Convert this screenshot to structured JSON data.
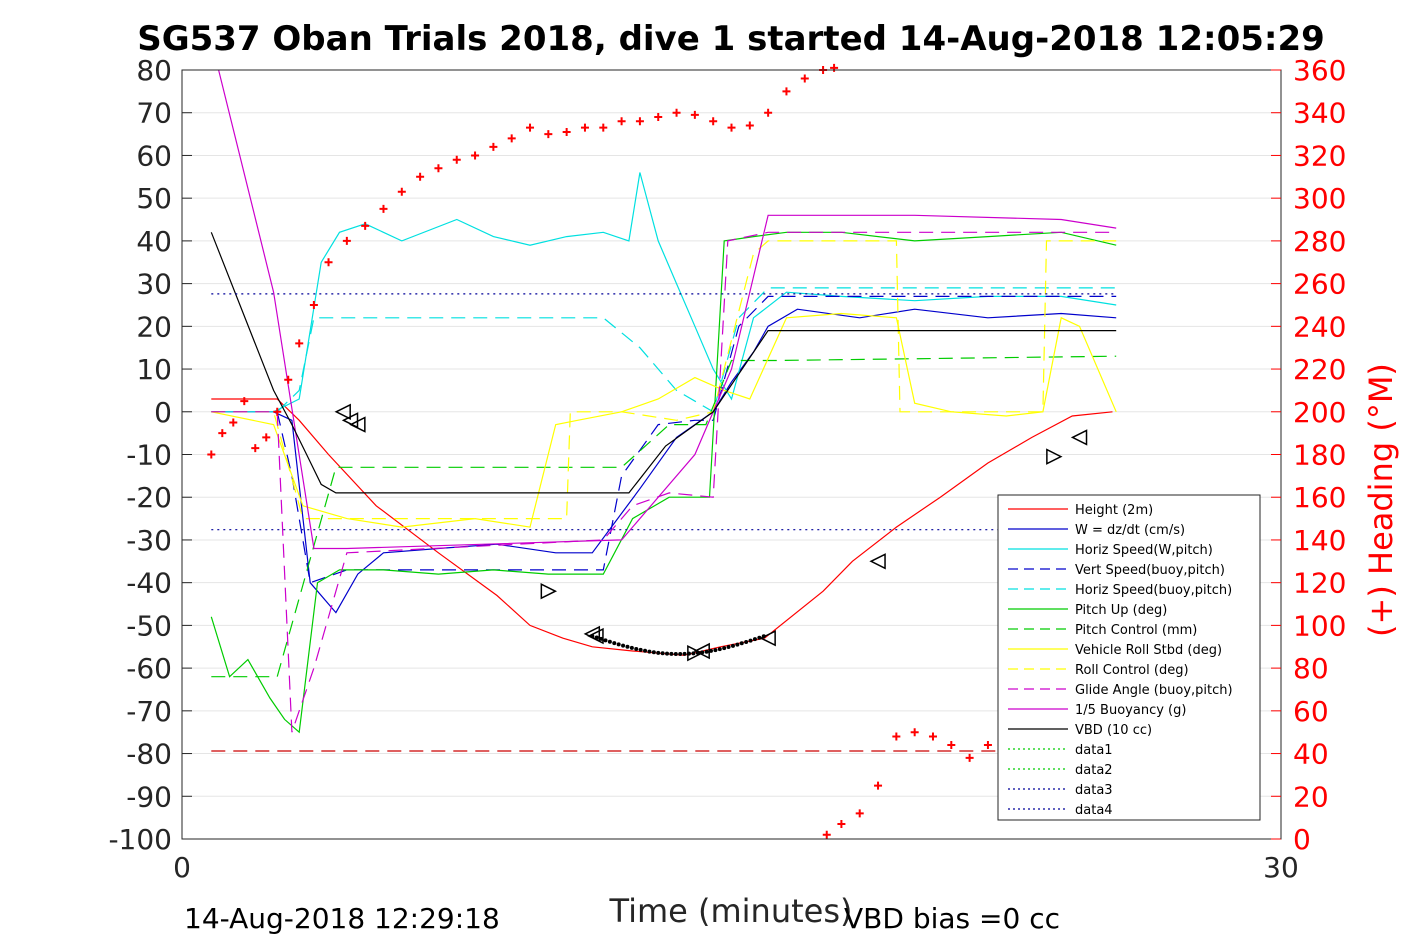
{
  "chart_data": {
    "type": "line",
    "title": "SG537 Oban Trials 2018, dive 1 started 14-Aug-2018 12:05:29",
    "xlabel": "Time (minutes)",
    "ylabel_right": "(+) Heading (°M)",
    "footer_left": "14-Aug-2018 12:29:18",
    "footer_right": "VBD bias =0 cc",
    "xlim": [
      0,
      30
    ],
    "ylim": [
      -100,
      80
    ],
    "ylim_right": [
      0,
      360
    ],
    "x_ticks": [
      "0",
      "30"
    ],
    "y_ticks": [
      "80",
      "70",
      "60",
      "50",
      "40",
      "30",
      "20",
      "10",
      "0",
      "-10",
      "-20",
      "-30",
      "-40",
      "-50",
      "-60",
      "-70",
      "-80",
      "-90",
      "-100"
    ],
    "y_ticks_right": [
      "360",
      "340",
      "320",
      "300",
      "280",
      "260",
      "240",
      "220",
      "200",
      "180",
      "160",
      "140",
      "120",
      "100",
      "80",
      "60",
      "40",
      "20",
      "0"
    ],
    "grid": true,
    "legend_placement": "lower-right",
    "series": [
      {
        "name": "Height (2m)",
        "color": "#ff0000",
        "style": "solid",
        "axis": "left",
        "x": [
          0.8,
          2.6,
          3.2,
          4.0,
          5.3,
          7.0,
          8.6,
          9.5,
          10.4,
          11.2,
          12.3,
          13.7,
          14.7,
          15.9,
          17.5,
          18.3,
          19.5,
          20.7,
          22.0,
          23.2,
          24.3,
          25.4
        ],
        "y": [
          3,
          3,
          -2,
          -10,
          -22,
          -33,
          -43,
          -50,
          -53,
          -55,
          -56,
          -57,
          -55,
          -53,
          -42,
          -35,
          -27,
          -20,
          -12,
          -6,
          -1,
          0
        ]
      },
      {
        "name": "W = dz/dt (cm/s)",
        "color": "#0000cc",
        "style": "solid",
        "axis": "left",
        "x": [
          0.8,
          2.5,
          3.0,
          3.5,
          4.2,
          4.8,
          5.5,
          7.0,
          8.6,
          10.2,
          11.2,
          12.5,
          13.5,
          14.0,
          14.5,
          15.0,
          15.6,
          16.0,
          16.8,
          18.5,
          20.0,
          22.0,
          24.0,
          25.5
        ],
        "y": [
          0,
          0,
          -2,
          -40,
          -47,
          -38,
          -33,
          -32,
          -31,
          -33,
          -33,
          -18,
          -6,
          -3,
          0,
          7,
          14,
          20,
          24,
          22,
          24,
          22,
          23,
          22
        ]
      },
      {
        "name": "Horiz Speed(W,pitch)",
        "color": "#00e0e0",
        "style": "solid",
        "axis": "left",
        "x": [
          0.8,
          2.5,
          3.2,
          3.8,
          4.3,
          5.0,
          6.0,
          7.5,
          8.5,
          9.5,
          10.5,
          11.5,
          12.2,
          12.5,
          13.0,
          13.5,
          14.0,
          14.5,
          15.0,
          15.6,
          16.5,
          18.0,
          20.0,
          22.0,
          24.0,
          25.5
        ],
        "y": [
          0,
          0,
          3,
          35,
          42,
          44,
          40,
          45,
          41,
          39,
          41,
          42,
          40,
          56,
          40,
          30,
          20,
          10,
          3,
          22,
          28,
          27,
          26,
          27,
          27,
          25
        ]
      },
      {
        "name": "Vert Speed(buoy,pitch)",
        "color": "#0000cc",
        "style": "dashed",
        "axis": "left",
        "x": [
          0.8,
          2.6,
          3.0,
          3.5,
          4.5,
          11.5,
          12.0,
          13.0,
          14.0,
          14.5,
          15.2,
          16.0,
          20.0,
          25.5
        ],
        "y": [
          0,
          0,
          -15,
          -40,
          -37,
          -37,
          -15,
          -3,
          -2,
          -2,
          20,
          27,
          27,
          27
        ]
      },
      {
        "name": "Horiz Speed(buoy,pitch)",
        "color": "#00e0e0",
        "style": "dashed",
        "axis": "left",
        "x": [
          0.8,
          2.6,
          3.2,
          3.6,
          4.5,
          11.5,
          12.5,
          13.5,
          14.5,
          15.2,
          16.0,
          20.0,
          25.5
        ],
        "y": [
          0,
          0,
          5,
          22,
          22,
          22,
          15,
          5,
          0,
          22,
          29,
          29,
          29
        ]
      },
      {
        "name": "Pitch Up (deg)",
        "color": "#00cc00",
        "style": "solid",
        "axis": "left",
        "x": [
          0.8,
          1.3,
          1.8,
          2.4,
          2.8,
          3.2,
          3.7,
          4.3,
          5.5,
          7.0,
          8.5,
          10.0,
          11.5,
          12.3,
          13.3,
          14.4,
          14.8,
          15.6,
          16.5,
          18.0,
          20.0,
          22.0,
          24.0,
          25.5
        ],
        "y": [
          -48,
          -62,
          -58,
          -67,
          -72,
          -75,
          -40,
          -37,
          -37,
          -38,
          -37,
          -38,
          -38,
          -25,
          -20,
          -20,
          40,
          41,
          42,
          42,
          40,
          41,
          42,
          39
        ]
      },
      {
        "name": "Pitch Control (mm)",
        "color": "#00cc00",
        "style": "dashed",
        "axis": "left",
        "x": [
          0.8,
          2.6,
          4.2,
          12.0,
          13.3,
          14.3,
          15.0,
          16.2,
          25.5
        ],
        "y": [
          -62,
          -62,
          -13,
          -13,
          -3,
          -3,
          12,
          12,
          13
        ]
      },
      {
        "name": "Vehicle Roll Stbd (deg)",
        "color": "#ffff00",
        "style": "solid",
        "axis": "left",
        "x": [
          0.8,
          2.5,
          3.3,
          4.5,
          6.0,
          8.0,
          9.5,
          10.2,
          10.8,
          12.0,
          13.0,
          14.0,
          14.8,
          15.5,
          16.5,
          18.0,
          19.5,
          20.0,
          21.0,
          22.5,
          23.5,
          24.0,
          24.5,
          25.5
        ],
        "y": [
          0,
          -3,
          -22,
          -25,
          -27,
          -25,
          -27,
          -3,
          -2,
          0,
          3,
          8,
          5,
          3,
          22,
          23,
          22,
          2,
          0,
          -1,
          0,
          22,
          20,
          0
        ]
      },
      {
        "name": "Roll Control (deg)",
        "color": "#ffff00",
        "style": "dashed",
        "axis": "left",
        "x": [
          0.8,
          2.5,
          3.3,
          4.5,
          10.5,
          10.6,
          12.0,
          13.5,
          14.5,
          15.6,
          16.0,
          18.0,
          19.5,
          19.6,
          23.5,
          23.6,
          25.5
        ],
        "y": [
          0,
          0,
          -25,
          -25,
          -25,
          0,
          0,
          -2,
          0,
          37,
          40,
          40,
          40,
          0,
          0,
          40,
          40
        ]
      },
      {
        "name": "Glide Angle (buoy,pitch)",
        "color": "#cc00cc",
        "style": "dashed",
        "axis": "left",
        "x": [
          0.8,
          2.6,
          3.0,
          3.6,
          4.5,
          11.5,
          12.3,
          13.3,
          14.5,
          14.9,
          16.0,
          20.0,
          25.5
        ],
        "y": [
          0,
          0,
          -75,
          -60,
          -33,
          -30,
          -22,
          -19,
          -20,
          40,
          42,
          42,
          42
        ]
      },
      {
        "name": "1/5 Buoyancy (g)",
        "color": "#cc00cc",
        "style": "solid",
        "axis": "left",
        "x": [
          1.0,
          2.5,
          3.6,
          4.5,
          12.0,
          14.0,
          15.0,
          16.0,
          20.0,
          24.0,
          25.5
        ],
        "y": [
          80,
          28,
          -32,
          -32,
          -30,
          -10,
          10,
          46,
          46,
          45,
          43
        ]
      },
      {
        "name": "VBD (10 cc)",
        "color": "#000000",
        "style": "solid",
        "axis": "left",
        "x": [
          0.8,
          2.5,
          3.0,
          3.4,
          3.8,
          4.2,
          12.2,
          13.2,
          14.5,
          16.0,
          17.0,
          20.0,
          25.5
        ],
        "y": [
          42,
          5,
          -3,
          -10,
          -17,
          -19,
          -19,
          -8,
          0,
          19,
          19,
          19,
          19
        ]
      },
      {
        "name": "data1",
        "color": "#00cc00",
        "style": "dotted",
        "axis": "left",
        "x": [],
        "y": []
      },
      {
        "name": "data2",
        "color": "#00cc00",
        "style": "dotted",
        "axis": "left",
        "x": [],
        "y": []
      },
      {
        "name": "data3",
        "color": "#000099",
        "style": "dotted",
        "axis": "left",
        "x": [
          0.8,
          25.5
        ],
        "y": [
          27.6,
          27.6
        ]
      },
      {
        "name": "data4",
        "color": "#000099",
        "style": "dotted",
        "axis": "left",
        "x": [
          0.8,
          25.5
        ],
        "y": [
          -27.6,
          -27.6
        ]
      },
      {
        "name": "",
        "color": "#cc0000",
        "style": "dashed",
        "axis": "left",
        "x": [
          0.8,
          25.5
        ],
        "y": [
          -79.4,
          -79.4
        ]
      },
      {
        "name": "",
        "color": "#ff0000",
        "style": "plus",
        "axis": "right",
        "x": [
          0.8,
          1.1,
          1.4,
          1.7,
          2.0,
          2.3,
          2.6,
          2.9,
          3.2,
          3.6,
          4.0,
          4.5,
          5.0,
          5.5,
          6.0,
          6.5,
          7.0,
          7.5,
          8.0,
          8.5,
          9.0,
          9.5,
          10.0,
          10.5,
          11.0,
          11.5,
          12.0,
          12.5,
          13.0,
          13.5,
          14.0,
          14.5,
          15.0,
          15.5,
          16.0,
          16.5,
          17.0,
          17.5,
          17.8
        ],
        "y": [
          180,
          190,
          195,
          205,
          183,
          188,
          200,
          215,
          232,
          250,
          270,
          280,
          287,
          295,
          303,
          310,
          314,
          318,
          320,
          324,
          328,
          333,
          330,
          331,
          333,
          333,
          336,
          336,
          338,
          340,
          339,
          336,
          333,
          334,
          340,
          350,
          356,
          360,
          361
        ]
      },
      {
        "name": "",
        "color": "#ff0000",
        "style": "plus",
        "axis": "right",
        "x": [
          17.6,
          18.0,
          18.5,
          19.0,
          19.5,
          20.0,
          20.5,
          21.0,
          21.5,
          22.0,
          22.5,
          23.0,
          23.5,
          24.0,
          24.5,
          25.0,
          25.5
        ],
        "y": [
          2,
          7,
          12,
          25,
          48,
          50,
          48,
          44,
          38,
          44,
          38,
          34,
          30,
          38,
          46,
          52,
          68
        ]
      }
    ],
    "markers": [
      {
        "x": 4.4,
        "y": 0,
        "dir": "left"
      },
      {
        "x": 4.6,
        "y": -2,
        "dir": "left"
      },
      {
        "x": 4.8,
        "y": -3,
        "dir": "left"
      },
      {
        "x": 10.0,
        "y": -42,
        "dir": "right"
      },
      {
        "x": 11.2,
        "y": -52,
        "dir": "left"
      },
      {
        "x": 11.3,
        "y": -52.5,
        "dir": "left"
      },
      {
        "x": 14.0,
        "y": -56.5,
        "dir": "right"
      },
      {
        "x": 14.2,
        "y": -56,
        "dir": "left"
      },
      {
        "x": 16.0,
        "y": -53,
        "dir": "left"
      },
      {
        "x": 19.0,
        "y": -35,
        "dir": "left"
      },
      {
        "x": 23.8,
        "y": -10.5,
        "dir": "right"
      },
      {
        "x": 24.5,
        "y": -6,
        "dir": "left"
      }
    ]
  }
}
